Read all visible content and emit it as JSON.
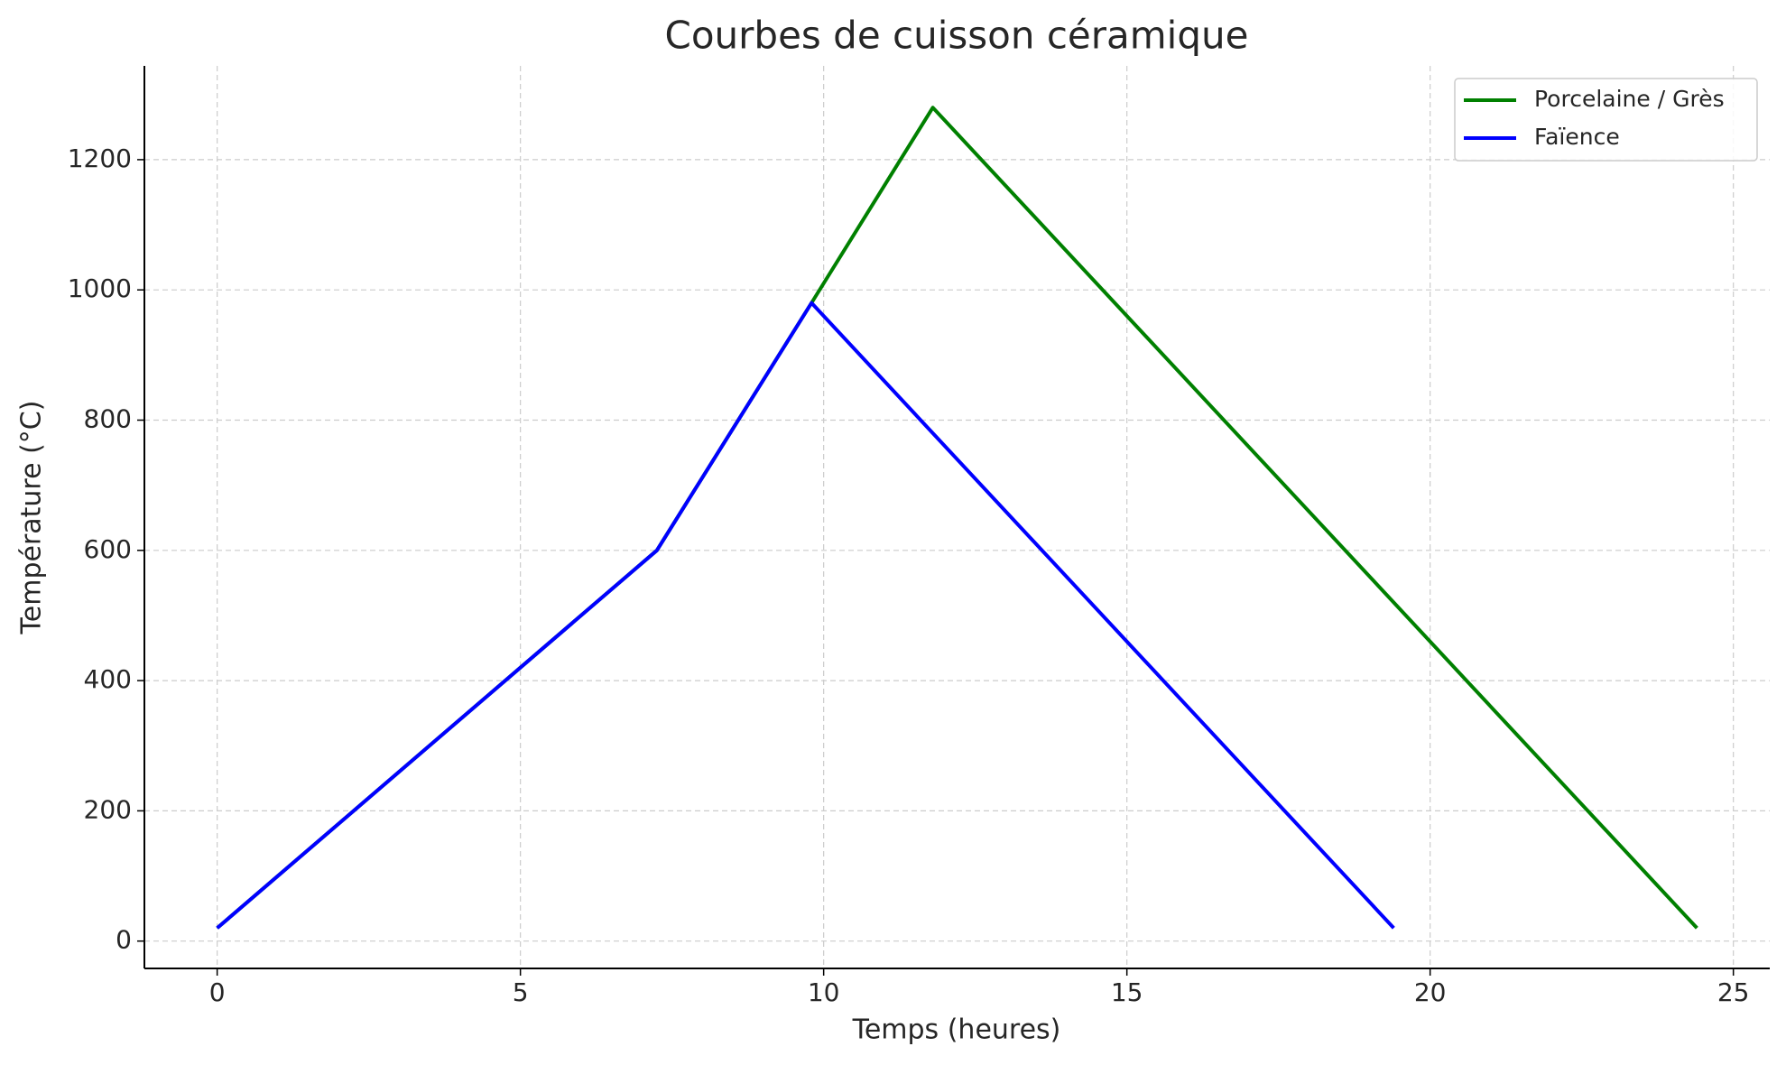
{
  "chart_data": {
    "type": "line",
    "title": "Courbes de cuisson céramique",
    "x_label": "Temps (heures)",
    "y_label": "Température (°C)",
    "series": [
      {
        "name": "Porcelaine / Grès",
        "color": "#008000",
        "x": [
          0,
          7.25,
          9.8,
          11.8,
          24.4
        ],
        "values": [
          20,
          600,
          980,
          1280,
          20
        ]
      },
      {
        "name": "Faïence",
        "color": "#0000ff",
        "x": [
          0,
          7.25,
          9.8,
          19.4
        ],
        "values": [
          20,
          600,
          980,
          20
        ]
      }
    ],
    "xlim": [
      -1.2,
      25.6
    ],
    "xticks": [
      0,
      5,
      10,
      15,
      20,
      25
    ],
    "ylim": [
      -42,
      1344
    ],
    "yticks": [
      0,
      200,
      400,
      600,
      800,
      1000,
      1200
    ],
    "grid": true,
    "legend": "upper right"
  }
}
